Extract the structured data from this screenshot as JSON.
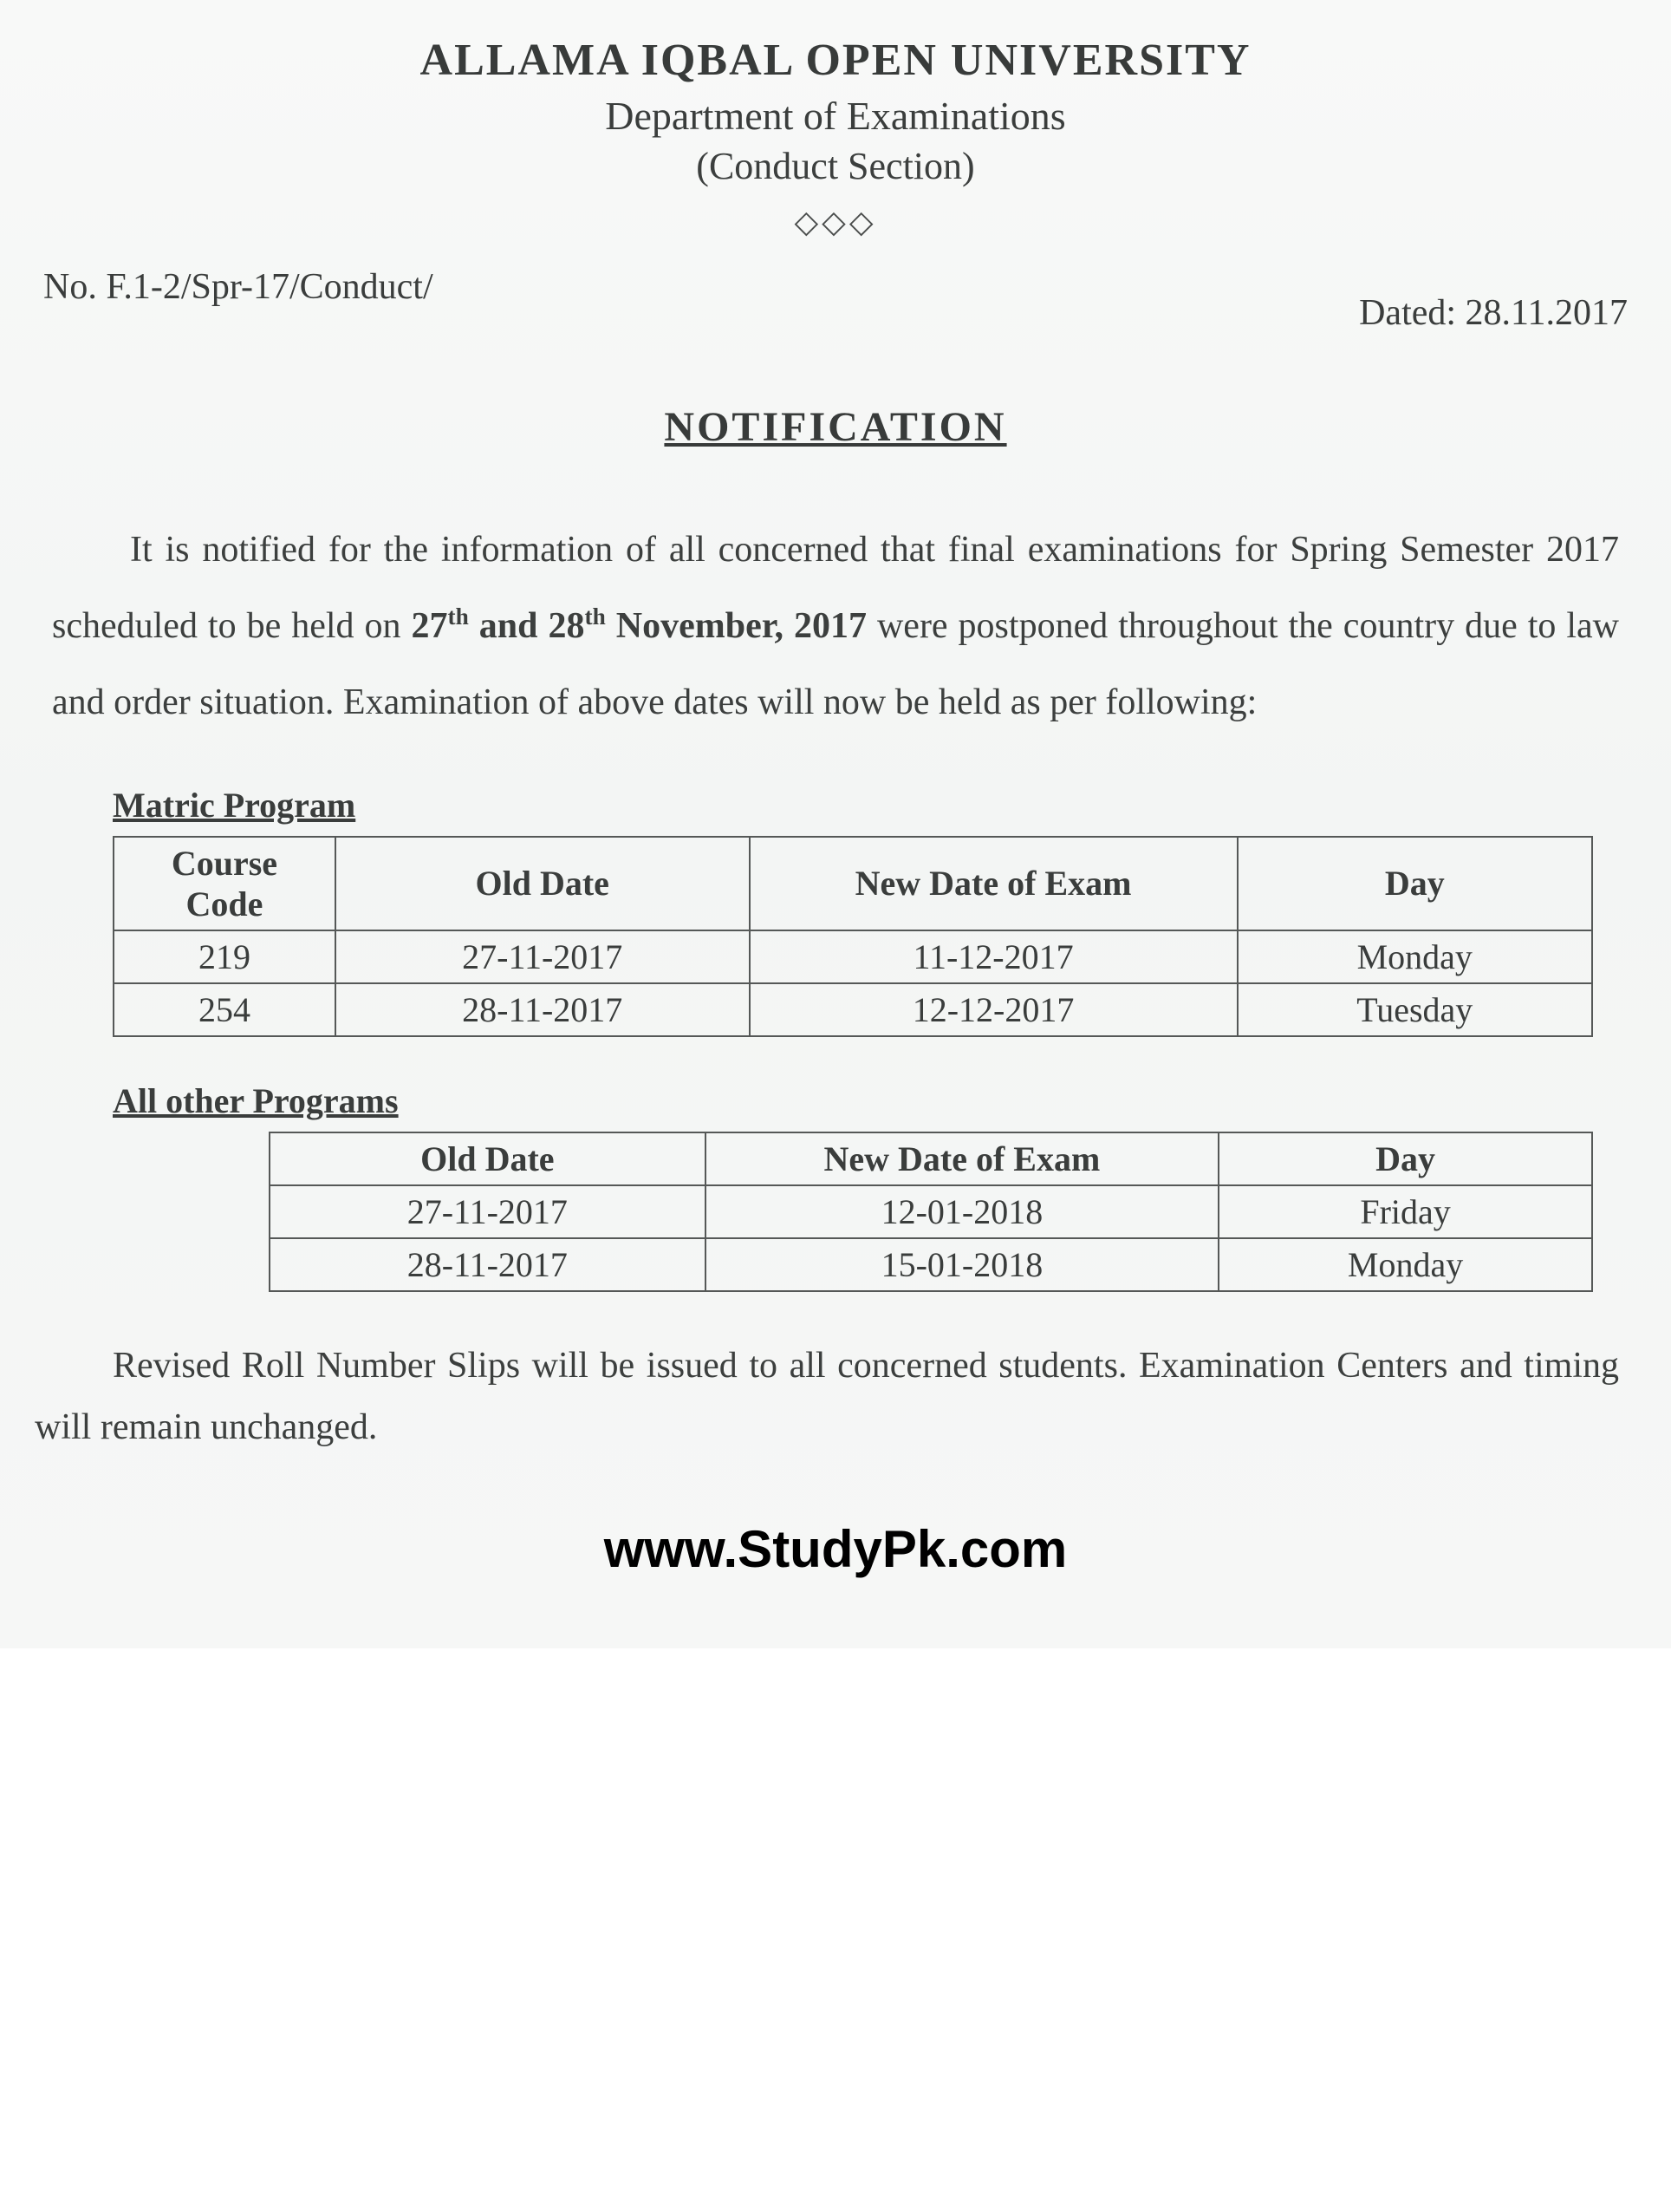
{
  "header": {
    "university": "ALLAMA IQBAL OPEN UNIVERSITY",
    "department": "Department of Examinations",
    "section": "(Conduct Section)",
    "ornament": "◇◇◇"
  },
  "meta": {
    "ref_no": "No. F.1-2/Spr-17/Conduct/",
    "dated": "Dated: 28.11.2017"
  },
  "title": "NOTIFICATION",
  "body": {
    "para1_a": "It is notified for the information of all concerned that final examinations for Spring Semester 2017 scheduled to be held on ",
    "date1": "27",
    "sup1": "th",
    "and": " and ",
    "date2": "28",
    "sup2": "th",
    "month": " November, 2017",
    "para1_b": " were postponed throughout the country due to law and order situation. Examination of above dates will now be held as per following:"
  },
  "tables": {
    "matric": {
      "heading": "Matric Program",
      "columns": [
        "Course Code",
        "Old Date",
        "New Date of Exam",
        "Day"
      ],
      "rows": [
        [
          "219",
          "27-11-2017",
          "11-12-2017",
          "Monday"
        ],
        [
          "254",
          "28-11-2017",
          "12-12-2017",
          "Tuesday"
        ]
      ]
    },
    "other": {
      "heading": "All other Programs",
      "columns": [
        "Old Date",
        "New Date of Exam",
        "Day"
      ],
      "rows": [
        [
          "27-11-2017",
          "12-01-2018",
          "Friday"
        ],
        [
          "28-11-2017",
          "15-01-2018",
          "Monday"
        ]
      ]
    }
  },
  "footer_para": "Revised Roll Number Slips will be issued to all concerned students. Examination Centers and timing will remain unchanged.",
  "watermark": "www.StudyPk.com"
}
